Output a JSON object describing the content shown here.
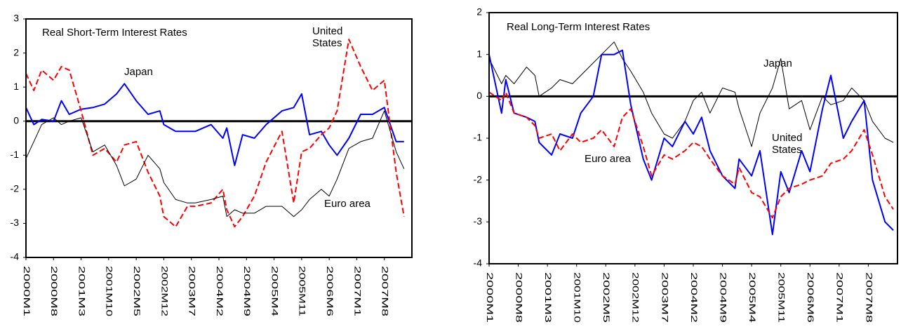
{
  "chart_data": [
    {
      "type": "line",
      "title": "Real Short-Term Interest Rates",
      "x": [
        0,
        2,
        4,
        7,
        9,
        11,
        14,
        17,
        20,
        23,
        25,
        28,
        31,
        34,
        35,
        38,
        41,
        43,
        47,
        50,
        51,
        53,
        55,
        58,
        61,
        65,
        68,
        70,
        72,
        75,
        77,
        79,
        82,
        85,
        88,
        91,
        94,
        96
      ],
      "xlim": [
        0,
        98
      ],
      "xticks": [
        {
          "value": 0,
          "label": "2000M1"
        },
        {
          "value": 7,
          "label": "2000M8"
        },
        {
          "value": 14,
          "label": "2001M3"
        },
        {
          "value": 21,
          "label": "2001M10"
        },
        {
          "value": 28,
          "label": "2002M5"
        },
        {
          "value": 35,
          "label": "2002M12"
        },
        {
          "value": 42,
          "label": "2003M7"
        },
        {
          "value": 49,
          "label": "2004M2"
        },
        {
          "value": 56,
          "label": "2004M9"
        },
        {
          "value": 63,
          "label": "2005M4"
        },
        {
          "value": 70,
          "label": "2005M11"
        },
        {
          "value": 77,
          "label": "2006M6"
        },
        {
          "value": 84,
          "label": "2007M1"
        },
        {
          "value": 91,
          "label": "2007M8"
        }
      ],
      "ylim": [
        -4,
        3
      ],
      "yticks": [
        -4,
        -3,
        -2,
        -1,
        0,
        1,
        2,
        3
      ],
      "series": [
        {
          "name": "Japan",
          "color": "#0000ff",
          "dashed": false,
          "values": [
            0.4,
            -0.1,
            0.05,
            0,
            0.6,
            0.2,
            0.35,
            0.4,
            0.5,
            0.8,
            1.1,
            0.6,
            0.2,
            0.3,
            -0.1,
            -0.3,
            -0.3,
            -0.3,
            -0.1,
            -0.5,
            -0.2,
            -1.3,
            -0.4,
            -0.5,
            -0.1,
            0.3,
            0.4,
            0.8,
            -0.4,
            -0.3,
            -0.7,
            -1.0,
            -0.5,
            0.2,
            0.2,
            0.4,
            -0.6,
            -0.6
          ]
        },
        {
          "name": "United States",
          "color": "#ff0000",
          "dashed": true,
          "values": [
            1.4,
            0.9,
            1.5,
            1.2,
            1.6,
            1.5,
            0.3,
            -1.0,
            -0.8,
            -1.2,
            -0.7,
            -0.6,
            -1.5,
            -2.2,
            -2.8,
            -3.1,
            -2.5,
            -2.5,
            -2.4,
            -2.0,
            -2.6,
            -3.1,
            -2.8,
            -2.2,
            -1.2,
            -0.3,
            -2.4,
            -0.9,
            -0.8,
            -0.4,
            -0.2,
            0.3,
            2.4,
            1.6,
            0.9,
            1.2,
            -1.5,
            -2.8
          ]
        },
        {
          "name": "Euro area",
          "color": "#000000",
          "dashed": false,
          "values": [
            -1.1,
            -0.6,
            -0.1,
            0.1,
            -0.1,
            0,
            0.1,
            -0.9,
            -0.7,
            -1.3,
            -1.9,
            -1.7,
            -1.0,
            -1.4,
            -1.8,
            -2.3,
            -2.4,
            -2.4,
            -2.3,
            -2.2,
            -2.8,
            -2.6,
            -2.7,
            -2.7,
            -2.5,
            -2.5,
            -2.8,
            -2.6,
            -2.3,
            -2.0,
            -2.2,
            -1.7,
            -0.8,
            -0.6,
            -0.5,
            0.3,
            -0.9,
            -1.4
          ]
        }
      ]
    },
    {
      "type": "line",
      "title": "Real Long-Term Interest Rates",
      "x": [
        0,
        3,
        4,
        6,
        9,
        11,
        12,
        15,
        17,
        20,
        22,
        25,
        27,
        30,
        32,
        34,
        37,
        39,
        42,
        44,
        47,
        49,
        51,
        53,
        56,
        59,
        60,
        63,
        65,
        68,
        70,
        72,
        75,
        77,
        80,
        82,
        85,
        87,
        90,
        92,
        95,
        97
      ],
      "xlim": [
        0,
        98
      ],
      "xticks": [
        {
          "value": 0,
          "label": "2000M1"
        },
        {
          "value": 7,
          "label": "2000M8"
        },
        {
          "value": 14,
          "label": "2001M3"
        },
        {
          "value": 21,
          "label": "2001M10"
        },
        {
          "value": 28,
          "label": "2002M5"
        },
        {
          "value": 35,
          "label": "2002M12"
        },
        {
          "value": 42,
          "label": "2003M7"
        },
        {
          "value": 49,
          "label": "2004M2"
        },
        {
          "value": 56,
          "label": "2004M9"
        },
        {
          "value": 63,
          "label": "2005M4"
        },
        {
          "value": 70,
          "label": "2005M11"
        },
        {
          "value": 77,
          "label": "2006M6"
        },
        {
          "value": 84,
          "label": "2007M1"
        },
        {
          "value": 91,
          "label": "2007M8"
        }
      ],
      "ylim": [
        -4,
        2
      ],
      "yticks": [
        -4,
        -3,
        -2,
        -1,
        0,
        1,
        2
      ],
      "series": [
        {
          "name": "Japan",
          "color": "#000000",
          "dashed": false,
          "values": [
            0.9,
            0.3,
            0.5,
            0.3,
            0.7,
            0.5,
            0.0,
            0.2,
            0.4,
            0.3,
            0.5,
            0.8,
            1.0,
            1.3,
            0.9,
            0.6,
            0.1,
            -0.4,
            -0.9,
            -1.0,
            -0.6,
            -0.1,
            0.1,
            -0.4,
            0.2,
            0.1,
            -0.3,
            -1.2,
            -0.4,
            0.2,
            0.9,
            -0.3,
            -0.1,
            -0.8,
            0.0,
            -0.2,
            -0.1,
            0.2,
            -0.1,
            -0.6,
            -1.0,
            -1.1
          ]
        },
        {
          "name": "United States",
          "color": "#0000ff",
          "dashed": false,
          "values": [
            1.0,
            -0.4,
            0.4,
            -0.4,
            -0.5,
            -0.6,
            -1.1,
            -1.4,
            -0.9,
            -1.0,
            -0.4,
            0.0,
            1.0,
            1.0,
            1.1,
            -0.2,
            -1.5,
            -2.0,
            -1.0,
            -1.2,
            -0.6,
            -0.9,
            -0.5,
            -1.3,
            -1.9,
            -2.2,
            -1.5,
            -1.9,
            -1.3,
            -3.3,
            -1.8,
            -2.3,
            -1.3,
            -1.8,
            -0.3,
            0.5,
            -1.0,
            -0.6,
            -0.1,
            -2.0,
            -3.0,
            -3.2
          ]
        },
        {
          "name": "Euro area",
          "color": "#ff0000",
          "dashed": true,
          "values": [
            0.1,
            -0.1,
            0.1,
            -0.4,
            -0.5,
            -0.7,
            -1.0,
            -0.9,
            -1.3,
            -0.9,
            -1.1,
            -1.0,
            -0.8,
            -1.2,
            -0.5,
            -0.3,
            -1.2,
            -1.9,
            -1.4,
            -1.5,
            -1.3,
            -1.1,
            -1.2,
            -1.5,
            -1.9,
            -2.1,
            -1.7,
            -2.3,
            -2.4,
            -2.9,
            -2.4,
            -2.2,
            -2.1,
            -2.0,
            -1.9,
            -1.6,
            -1.5,
            -1.3,
            -0.8,
            -1.4,
            -2.4,
            -2.7
          ]
        }
      ]
    }
  ]
}
